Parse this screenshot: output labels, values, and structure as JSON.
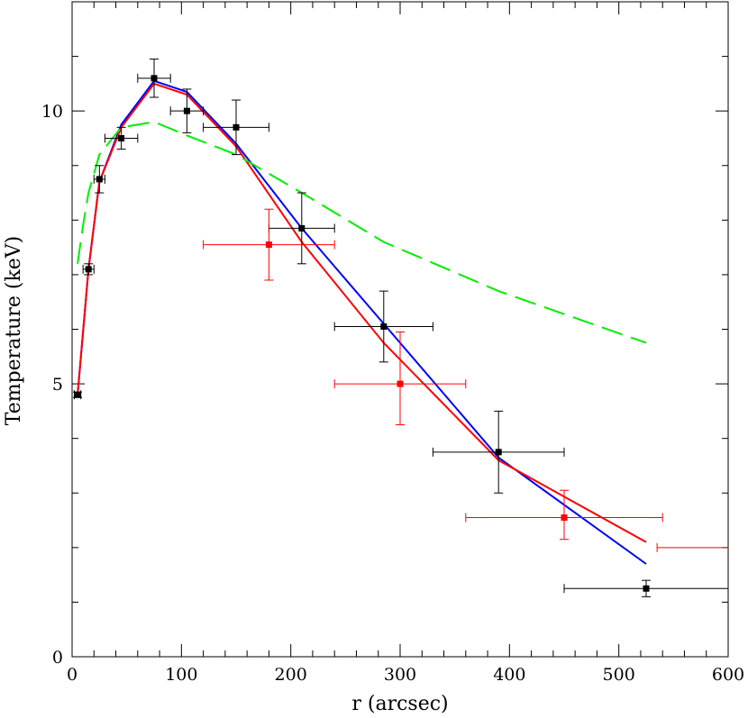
{
  "chart_data": {
    "type": "scatter",
    "xlabel": "r (arcsec)",
    "ylabel": "Temperature (keV)",
    "xlim": [
      0,
      600
    ],
    "ylim": [
      0,
      12
    ],
    "xticks": [
      0,
      100,
      200,
      300,
      400,
      500,
      600
    ],
    "yticks": [
      0,
      5,
      10
    ],
    "x_minor_step": 20,
    "y_minor_step": 1,
    "grid": false,
    "series": [
      {
        "kind": "points",
        "color": "#000000",
        "points": [
          {
            "x": 5,
            "y": 4.8,
            "xerr": 3,
            "yerr_lo": 0.05,
            "yerr_hi": 0.05
          },
          {
            "x": 15,
            "y": 7.1,
            "xerr": 5,
            "yerr_lo": 0.1,
            "yerr_hi": 0.1
          },
          {
            "x": 25,
            "y": 8.75,
            "xerr": 5,
            "yerr_lo": 0.25,
            "yerr_hi": 0.25
          },
          {
            "x": 45,
            "y": 9.5,
            "xerr": 15,
            "yerr_lo": 0.2,
            "yerr_hi": 0.2
          },
          {
            "x": 75,
            "y": 10.6,
            "xerr": 15,
            "yerr_lo": 0.35,
            "yerr_hi": 0.35
          },
          {
            "x": 105,
            "y": 10.0,
            "xerr": 15,
            "yerr_lo": 0.4,
            "yerr_hi": 0.4
          },
          {
            "x": 150,
            "y": 9.7,
            "xerr": 30,
            "yerr_lo": 0.5,
            "yerr_hi": 0.5
          },
          {
            "x": 210,
            "y": 7.85,
            "xerr": 30,
            "yerr_lo": 0.65,
            "yerr_hi": 0.65
          },
          {
            "x": 285,
            "y": 6.05,
            "xerr": 45,
            "yerr_lo": 0.65,
            "yerr_hi": 0.65
          },
          {
            "x": 390,
            "y": 3.75,
            "xerr": 60,
            "yerr_lo": 0.75,
            "yerr_hi": 0.75
          },
          {
            "x": 525,
            "y": 1.25,
            "xerr": 75,
            "yerr_lo": 0.15,
            "yerr_hi": 0.15
          }
        ]
      },
      {
        "kind": "points",
        "color": "#ff0000",
        "points": [
          {
            "x": 180,
            "y": 7.55,
            "xerr": 60,
            "yerr_lo": 0.65,
            "yerr_hi": 0.65
          },
          {
            "x": 300,
            "y": 5.0,
            "xerr": 60,
            "yerr_lo": 0.75,
            "yerr_hi": 0.95
          },
          {
            "x": 450,
            "y": 2.55,
            "xerr": 90,
            "yerr_lo": 0.4,
            "yerr_hi": 0.5
          }
        ],
        "extra_bar": {
          "x1": 535,
          "x2": 600,
          "y": 2.0
        }
      },
      {
        "kind": "line",
        "color": "#0000ff",
        "dash": "",
        "points": [
          [
            5,
            4.8
          ],
          [
            15,
            7.1
          ],
          [
            25,
            8.7
          ],
          [
            45,
            9.75
          ],
          [
            75,
            10.55
          ],
          [
            105,
            10.35
          ],
          [
            150,
            9.4
          ],
          [
            210,
            7.85
          ],
          [
            285,
            6.1
          ],
          [
            390,
            3.65
          ],
          [
            525,
            1.7
          ]
        ]
      },
      {
        "kind": "line",
        "color": "#ff0000",
        "dash": "",
        "points": [
          [
            5,
            4.8
          ],
          [
            15,
            7.1
          ],
          [
            25,
            8.7
          ],
          [
            45,
            9.7
          ],
          [
            75,
            10.5
          ],
          [
            105,
            10.3
          ],
          [
            150,
            9.35
          ],
          [
            210,
            7.6
          ],
          [
            285,
            5.75
          ],
          [
            390,
            3.6
          ],
          [
            525,
            2.1
          ]
        ]
      },
      {
        "kind": "line",
        "color": "#00ee00",
        "dash": "24,10",
        "points": [
          [
            5,
            7.2
          ],
          [
            10,
            7.9
          ],
          [
            15,
            8.5
          ],
          [
            25,
            9.2
          ],
          [
            45,
            9.7
          ],
          [
            75,
            9.8
          ],
          [
            105,
            9.55
          ],
          [
            150,
            9.2
          ],
          [
            210,
            8.5
          ],
          [
            285,
            7.6
          ],
          [
            390,
            6.7
          ],
          [
            525,
            5.75
          ]
        ]
      }
    ]
  }
}
